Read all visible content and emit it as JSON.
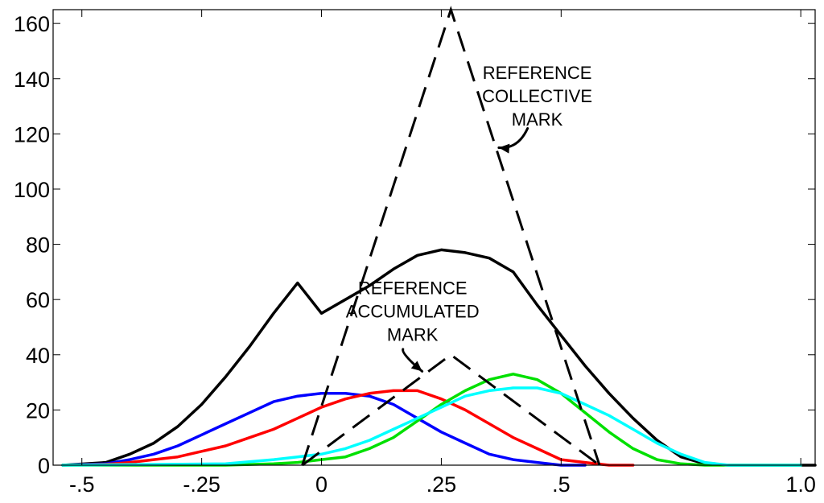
{
  "chart_data": {
    "type": "line",
    "title": "",
    "xlabel": "",
    "ylabel": "",
    "xlim": [
      -0.56,
      1.03
    ],
    "ylim": [
      0,
      165
    ],
    "x_ticks": [
      -0.5,
      -0.25,
      0,
      0.25,
      0.5,
      1.0
    ],
    "x_tick_labels": [
      ".5",
      ".25",
      "0",
      ".25",
      ".5",
      "1.0"
    ],
    "x_tick_signs": [
      "-",
      "-",
      "",
      "",
      "",
      ""
    ],
    "y_ticks": [
      0,
      20,
      40,
      60,
      80,
      100,
      120,
      140,
      160
    ],
    "y_tick_labels": [
      "0",
      "20",
      "40",
      "60",
      "80",
      "100",
      "120",
      "140",
      "160"
    ],
    "grid": false,
    "series": [
      {
        "color": "#000000",
        "style": "solid",
        "x": [
          -0.54,
          -0.45,
          -0.4,
          -0.35,
          -0.3,
          -0.25,
          -0.2,
          -0.15,
          -0.1,
          -0.05,
          0,
          0.05,
          0.1,
          0.15,
          0.2,
          0.25,
          0.3,
          0.35,
          0.4,
          0.45,
          0.5,
          0.55,
          0.6,
          0.65,
          0.7,
          0.75,
          0.8,
          0.85,
          0.9,
          0.95,
          1.0,
          1.03
        ],
        "y": [
          0,
          1,
          4,
          8,
          14,
          22,
          32,
          43,
          55,
          66,
          55,
          60,
          65,
          71,
          76,
          78,
          77,
          75,
          70,
          58,
          47,
          36,
          26,
          17,
          9,
          3,
          0.5,
          0,
          0,
          0,
          0,
          0
        ]
      },
      {
        "color": "#0000ff",
        "style": "solid",
        "x": [
          -0.54,
          -0.45,
          -0.4,
          -0.35,
          -0.3,
          -0.25,
          -0.2,
          -0.15,
          -0.1,
          -0.05,
          0,
          0.05,
          0.1,
          0.15,
          0.2,
          0.25,
          0.3,
          0.35,
          0.4,
          0.45,
          0.5,
          0.55
        ],
        "y": [
          0,
          0.5,
          2,
          4,
          7,
          11,
          15,
          19,
          23,
          25,
          26,
          26,
          25,
          22,
          17,
          12,
          8,
          4,
          2,
          1,
          0,
          0
        ]
      },
      {
        "color": "#ff0000",
        "style": "solid",
        "x": [
          -0.54,
          -0.45,
          -0.4,
          -0.35,
          -0.3,
          -0.25,
          -0.2,
          -0.15,
          -0.1,
          -0.05,
          0,
          0.05,
          0.1,
          0.15,
          0.2,
          0.25,
          0.3,
          0.35,
          0.4,
          0.45,
          0.5,
          0.55,
          0.6,
          0.65
        ],
        "y": [
          0,
          0.3,
          1,
          2,
          3,
          5,
          7,
          10,
          13,
          17,
          21,
          24,
          26,
          27,
          27,
          24,
          20,
          15,
          10,
          6,
          2,
          1,
          0,
          0
        ]
      },
      {
        "color": "#00e000",
        "style": "solid",
        "x": [
          -0.54,
          -0.2,
          -0.1,
          -0.05,
          0,
          0.05,
          0.1,
          0.15,
          0.2,
          0.25,
          0.3,
          0.35,
          0.4,
          0.45,
          0.5,
          0.55,
          0.6,
          0.65,
          0.7,
          0.75,
          0.8,
          0.85,
          0.9,
          0.95,
          1.0
        ],
        "y": [
          0,
          0,
          0.5,
          1,
          2,
          3,
          6,
          10,
          16,
          22,
          27,
          31,
          33,
          31,
          26,
          19,
          12,
          6,
          2,
          0.5,
          0,
          0,
          0,
          0,
          0
        ]
      },
      {
        "color": "#00ffff",
        "style": "solid",
        "x": [
          -0.54,
          -0.2,
          -0.1,
          -0.05,
          0,
          0.05,
          0.1,
          0.15,
          0.2,
          0.25,
          0.3,
          0.35,
          0.4,
          0.45,
          0.5,
          0.55,
          0.6,
          0.65,
          0.7,
          0.75,
          0.8,
          0.85,
          0.9,
          0.95,
          1.0
        ],
        "y": [
          0,
          0.5,
          2,
          3,
          4,
          6,
          9,
          13,
          17,
          21,
          25,
          27,
          28,
          28,
          26,
          22,
          18,
          13,
          8,
          4,
          1,
          0,
          0,
          0,
          0
        ]
      },
      {
        "color": "#000000",
        "style": "dashed",
        "x": [
          -0.04,
          0.27,
          0.58
        ],
        "y": [
          0,
          165,
          0
        ]
      },
      {
        "color": "#000000",
        "style": "dashed",
        "x": [
          -0.04,
          0.27,
          0.58
        ],
        "y": [
          0,
          40,
          0
        ]
      }
    ],
    "annotations": [
      {
        "lines": [
          "REFERENCE",
          "COLLECTIVE",
          "MARK"
        ],
        "text_x": 0.45,
        "text_y": 140,
        "arrow_from": [
          0.43,
          122
        ],
        "arrow_to": [
          0.37,
          115
        ]
      },
      {
        "lines": [
          "REFERENCE",
          "ACCUMULATED",
          "MARK"
        ],
        "text_x": 0.19,
        "text_y": 62,
        "arrow_from": [
          0.17,
          42
        ],
        "arrow_to": [
          0.21,
          34
        ]
      }
    ]
  }
}
